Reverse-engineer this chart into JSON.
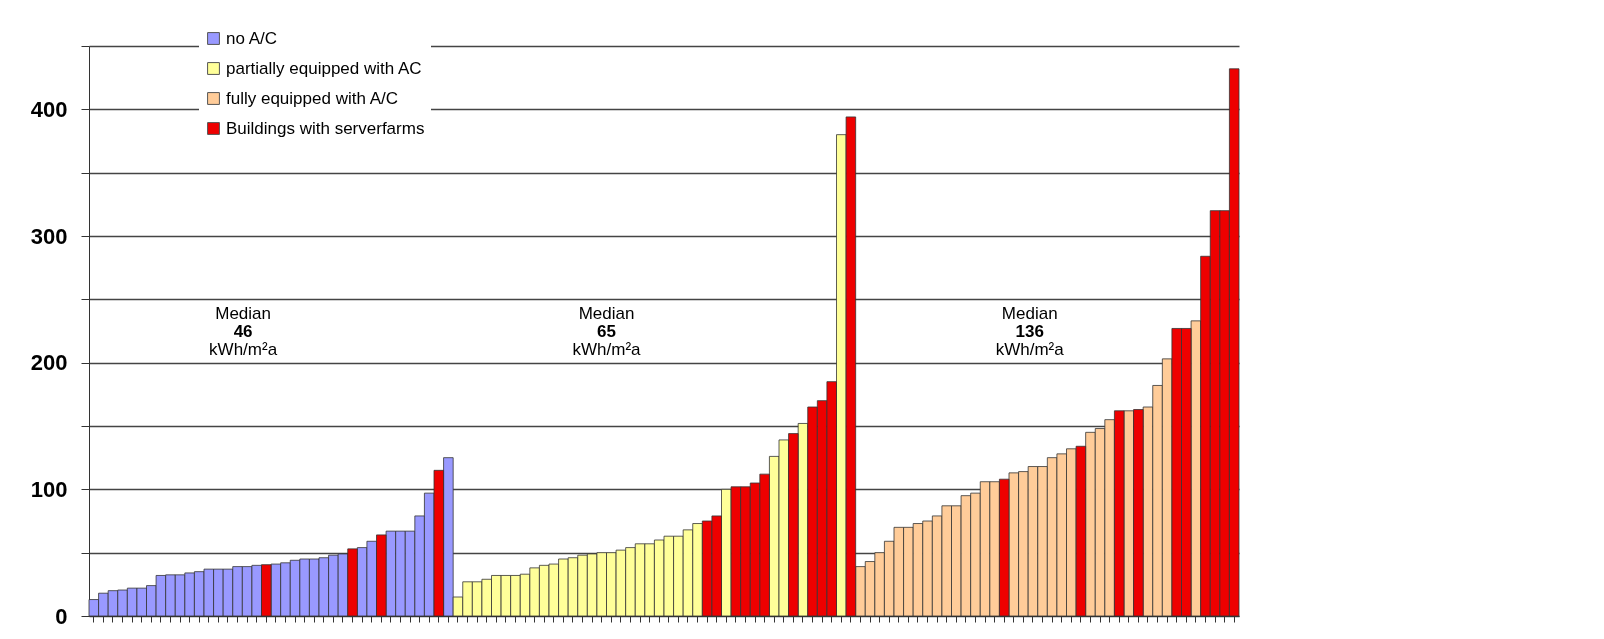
{
  "chart_data": {
    "type": "bar",
    "categories": [
      null,
      null,
      null,
      null,
      null,
      null,
      null,
      null,
      null,
      null,
      null,
      null,
      null,
      null,
      null,
      null,
      null,
      null,
      null,
      null,
      null,
      null,
      null,
      null,
      null,
      null,
      null,
      null,
      null,
      null,
      null,
      null,
      null,
      null,
      null,
      null,
      null,
      null,
      null,
      null,
      null,
      null,
      null,
      null,
      null,
      null,
      null,
      null,
      null,
      null,
      null,
      null,
      null,
      null,
      null,
      null,
      null,
      null,
      null,
      null,
      null,
      null,
      null,
      null,
      null,
      null,
      null,
      null,
      null,
      null,
      null,
      null,
      null,
      null,
      null,
      null,
      null,
      null,
      null,
      null,
      null,
      null,
      null,
      null,
      null,
      null,
      null,
      null,
      null,
      null,
      null,
      null,
      null,
      null,
      null,
      null,
      null,
      null,
      null,
      null,
      null,
      null,
      null,
      null,
      null,
      null,
      null,
      null,
      null,
      null,
      null,
      null,
      null,
      null,
      null,
      null,
      null,
      null,
      null,
      null
    ],
    "series": [
      {
        "name": "no A/C",
        "color": "#9999ff",
        "values": [
          13,
          18,
          20,
          20.5,
          22,
          22,
          24,
          32,
          32.5,
          32.5,
          34,
          35,
          37,
          37,
          37,
          39,
          39,
          40,
          null,
          41,
          42,
          44,
          45,
          45,
          46,
          48,
          49,
          null,
          54,
          59,
          null,
          67,
          67,
          67,
          79,
          97,
          null,
          125,
          null,
          null,
          null,
          null,
          null,
          null,
          null,
          null,
          null,
          null,
          null,
          null,
          null,
          null,
          null,
          null,
          null,
          null,
          null,
          null,
          null,
          null,
          null,
          null,
          null,
          null,
          null,
          null,
          null,
          null,
          null,
          null,
          null,
          null,
          null,
          null,
          null,
          null,
          null,
          null,
          null,
          null,
          null,
          null,
          null,
          null,
          null,
          null,
          null,
          null,
          null,
          null,
          null,
          null,
          null,
          null,
          null,
          null,
          null,
          null,
          null,
          null,
          null,
          null,
          null,
          null,
          null,
          null,
          null,
          null,
          null,
          null,
          null,
          null,
          null,
          null,
          null,
          null,
          null,
          null,
          null,
          null
        ]
      },
      {
        "name": "partially equipped with AC",
        "color": "#ffff99",
        "values": [
          null,
          null,
          null,
          null,
          null,
          null,
          null,
          null,
          null,
          null,
          null,
          null,
          null,
          null,
          null,
          null,
          null,
          null,
          null,
          null,
          null,
          null,
          null,
          null,
          null,
          null,
          null,
          null,
          null,
          null,
          null,
          null,
          null,
          null,
          null,
          null,
          null,
          null,
          15,
          27,
          27,
          29,
          32,
          32,
          32,
          33,
          38,
          40,
          41,
          45,
          46,
          48,
          49,
          50,
          50,
          52,
          54,
          57,
          57,
          60,
          63,
          63,
          68,
          73,
          null,
          null,
          100,
          null,
          null,
          null,
          null,
          126,
          139,
          null,
          152,
          null,
          null,
          null,
          380,
          null,
          null,
          null,
          null,
          null,
          null,
          null,
          null,
          null,
          null,
          null,
          null,
          null,
          null,
          null,
          null,
          null,
          null,
          null,
          null,
          null,
          null,
          null,
          null,
          null,
          null,
          null,
          null,
          null,
          null,
          null,
          null,
          null,
          null,
          null,
          null,
          null,
          null,
          null,
          null,
          null
        ]
      },
      {
        "name": "fully equipped with A/C",
        "color": "#ffcc99",
        "values": [
          null,
          null,
          null,
          null,
          null,
          null,
          null,
          null,
          null,
          null,
          null,
          null,
          null,
          null,
          null,
          null,
          null,
          null,
          null,
          null,
          null,
          null,
          null,
          null,
          null,
          null,
          null,
          null,
          null,
          null,
          null,
          null,
          null,
          null,
          null,
          null,
          null,
          null,
          null,
          null,
          null,
          null,
          null,
          null,
          null,
          null,
          null,
          null,
          null,
          null,
          null,
          null,
          null,
          null,
          null,
          null,
          null,
          null,
          null,
          null,
          null,
          null,
          null,
          null,
          null,
          null,
          null,
          null,
          null,
          null,
          null,
          null,
          null,
          null,
          null,
          null,
          null,
          null,
          null,
          null,
          39,
          43,
          50,
          59,
          70,
          70,
          73,
          75,
          79,
          87,
          87,
          95,
          97,
          106,
          106,
          null,
          113,
          114,
          118,
          118,
          125,
          128,
          132,
          null,
          145,
          148,
          155,
          null,
          162,
          null,
          165,
          182,
          203,
          null,
          null,
          233,
          null,
          null,
          null,
          null
        ]
      },
      {
        "name": "Buildings with serverfarms",
        "color": "#ee0000",
        "values": [
          null,
          null,
          null,
          null,
          null,
          null,
          null,
          null,
          null,
          null,
          null,
          null,
          null,
          null,
          null,
          null,
          null,
          null,
          40.5,
          null,
          null,
          null,
          null,
          null,
          null,
          null,
          null,
          53,
          null,
          null,
          64,
          null,
          null,
          null,
          null,
          null,
          115,
          null,
          null,
          null,
          null,
          null,
          null,
          null,
          null,
          null,
          null,
          null,
          null,
          null,
          null,
          null,
          null,
          null,
          null,
          null,
          null,
          null,
          null,
          null,
          null,
          null,
          null,
          null,
          75,
          79,
          null,
          102,
          102,
          105,
          112,
          null,
          null,
          144,
          null,
          165,
          170,
          185,
          null,
          394,
          null,
          null,
          null,
          null,
          null,
          null,
          null,
          null,
          null,
          null,
          null,
          null,
          null,
          null,
          null,
          108,
          null,
          null,
          null,
          null,
          null,
          null,
          null,
          134,
          null,
          null,
          null,
          162,
          null,
          163,
          null,
          null,
          null,
          227,
          227,
          null,
          284,
          320,
          320,
          432
        ]
      }
    ],
    "ylim": [
      0,
      450
    ],
    "yticks": [
      0,
      {
        "value": 50,
        "label": null
      },
      100,
      {
        "value": 150,
        "label": null
      },
      200,
      {
        "value": 250,
        "label": null
      },
      300,
      {
        "value": 350,
        "label": null
      },
      400,
      {
        "value": 450,
        "label": null
      }
    ],
    "grid": "y",
    "legend": "top left",
    "tick_labels": "y",
    "annotations": [
      "Median\n46\nkWh/m²a",
      "Median\n65\nkWh/m²a",
      "Median\n136\nkWh/m²a"
    ]
  }
}
